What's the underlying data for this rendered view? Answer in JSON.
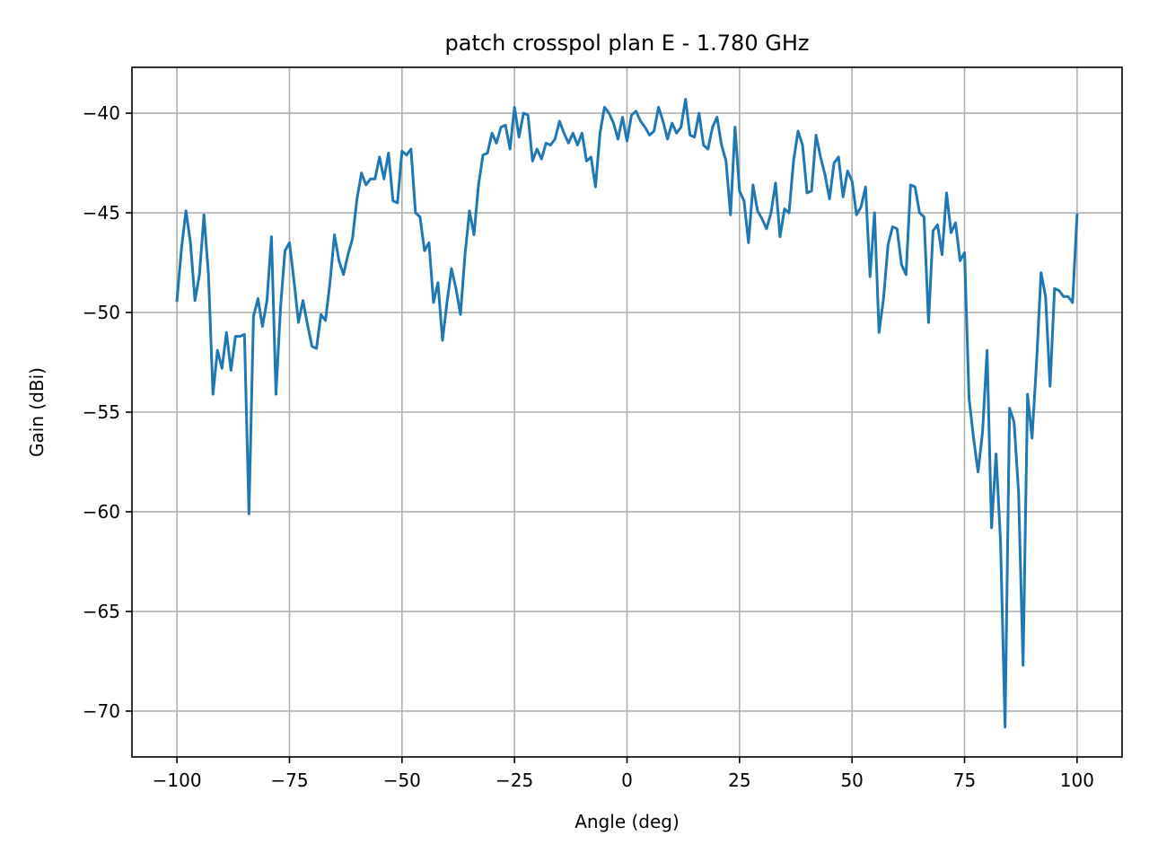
{
  "chart_data": {
    "type": "line",
    "title": "patch crosspol plan E - 1.780 GHz",
    "xlabel": "Angle (deg)",
    "ylabel": "Gain (dBi)",
    "xlim": [
      -110,
      110
    ],
    "ylim": [
      -72.3,
      -37.7
    ],
    "xticks": [
      -100,
      -75,
      -50,
      -25,
      0,
      25,
      50,
      75,
      100
    ],
    "xtick_labels": [
      "−100",
      "−75",
      "−50",
      "−25",
      "0",
      "25",
      "50",
      "75",
      "100"
    ],
    "yticks": [
      -40,
      -45,
      -50,
      -55,
      -60,
      -65,
      -70
    ],
    "ytick_labels": [
      "−40",
      "−45",
      "−50",
      "−55",
      "−60",
      "−65",
      "−70"
    ],
    "grid": true,
    "series": [
      {
        "color": "#1f77b4",
        "x": [
          -100,
          -99,
          -98,
          -97,
          -96,
          -95,
          -94,
          -93,
          -92,
          -91,
          -90,
          -89,
          -88,
          -87,
          -86,
          -85,
          -84,
          -83,
          -82,
          -81,
          -80,
          -79,
          -78,
          -77,
          -76,
          -75,
          -74,
          -73,
          -72,
          -71,
          -70,
          -69,
          -68,
          -67,
          -66,
          -65,
          -64,
          -63,
          -62,
          -61,
          -60,
          -59,
          -58,
          -57,
          -56,
          -55,
          -54,
          -53,
          -52,
          -51,
          -50,
          -49,
          -48,
          -47,
          -46,
          -45,
          -44,
          -43,
          -42,
          -41,
          -40,
          -39,
          -38,
          -37,
          -36,
          -35,
          -34,
          -33,
          -32,
          -31,
          -30,
          -29,
          -28,
          -27,
          -26,
          -25,
          -24,
          -23,
          -22,
          -21,
          -20,
          -19,
          -18,
          -17,
          -16,
          -15,
          -14,
          -13,
          -12,
          -11,
          -10,
          -9,
          -8,
          -7,
          -6,
          -5,
          -4,
          -3,
          -2,
          -1,
          0,
          1,
          2,
          3,
          4,
          5,
          6,
          7,
          8,
          9,
          10,
          11,
          12,
          13,
          14,
          15,
          16,
          17,
          18,
          19,
          20,
          21,
          22,
          23,
          24,
          25,
          26,
          27,
          28,
          29,
          30,
          31,
          32,
          33,
          34,
          35,
          36,
          37,
          38,
          39,
          40,
          41,
          42,
          43,
          44,
          45,
          46,
          47,
          48,
          49,
          50,
          51,
          52,
          53,
          54,
          55,
          56,
          57,
          58,
          59,
          60,
          61,
          62,
          63,
          64,
          65,
          66,
          67,
          68,
          69,
          70,
          71,
          72,
          73,
          74,
          75,
          76,
          77,
          78,
          79,
          80,
          81,
          82,
          83,
          84,
          85,
          86,
          87,
          88,
          89,
          90,
          91,
          92,
          93,
          94,
          95,
          96,
          97,
          98,
          99,
          100
        ],
        "y": [
          -49.4,
          -46.8,
          -44.9,
          -46.5,
          -49.4,
          -48.1,
          -45.1,
          -48.1,
          -54.1,
          -51.9,
          -52.8,
          -51.0,
          -52.9,
          -51.2,
          -51.2,
          -51.1,
          -60.1,
          -50.2,
          -49.3,
          -50.7,
          -49.4,
          -46.2,
          -54.1,
          -49.8,
          -46.9,
          -46.5,
          -48.4,
          -50.5,
          -49.4,
          -50.6,
          -51.7,
          -51.8,
          -50.1,
          -50.4,
          -48.5,
          -46.1,
          -47.4,
          -48.1,
          -47.1,
          -46.3,
          -44.3,
          -43.0,
          -43.6,
          -43.3,
          -43.3,
          -42.2,
          -43.3,
          -42.0,
          -44.4,
          -44.5,
          -41.9,
          -42.1,
          -41.8,
          -45.0,
          -45.2,
          -46.9,
          -46.5,
          -49.5,
          -48.5,
          -51.4,
          -49.5,
          -47.8,
          -48.8,
          -50.1,
          -47.1,
          -44.9,
          -46.1,
          -43.6,
          -42.1,
          -42.0,
          -41.0,
          -41.5,
          -40.7,
          -40.6,
          -41.8,
          -39.7,
          -41.2,
          -40.0,
          -40.1,
          -42.4,
          -41.8,
          -42.3,
          -41.5,
          -41.6,
          -41.3,
          -40.4,
          -41.0,
          -41.5,
          -41.0,
          -41.6,
          -41.0,
          -42.4,
          -42.2,
          -43.7,
          -41.0,
          -39.7,
          -40.0,
          -40.5,
          -41.3,
          -40.2,
          -41.4,
          -40.1,
          -39.9,
          -40.4,
          -40.7,
          -41.1,
          -40.9,
          -39.7,
          -40.4,
          -41.3,
          -40.5,
          -41.0,
          -40.7,
          -39.3,
          -41.1,
          -41.2,
          -40.0,
          -41.6,
          -41.8,
          -40.7,
          -40.2,
          -41.6,
          -42.4,
          -45.1,
          -40.7,
          -43.9,
          -44.4,
          -46.5,
          -43.6,
          -44.9,
          -45.3,
          -45.8,
          -45.0,
          -43.5,
          -46.2,
          -44.8,
          -45.0,
          -42.4,
          -40.9,
          -41.6,
          -44.0,
          -43.9,
          -41.1,
          -42.2,
          -43.1,
          -44.3,
          -42.5,
          -42.2,
          -44.2,
          -42.9,
          -43.4,
          -45.1,
          -44.7,
          -43.7,
          -48.2,
          -45.0,
          -51.0,
          -49.3,
          -46.6,
          -45.7,
          -45.8,
          -47.6,
          -48.1,
          -43.6,
          -43.7,
          -45.0,
          -45.2,
          -50.5,
          -45.9,
          -45.6,
          -47.1,
          -44.0,
          -46.0,
          -45.5,
          -47.4,
          -47.0,
          -54.3,
          -56.3,
          -58.0,
          -56.0,
          -51.9,
          -60.8,
          -57.1,
          -61.5,
          -70.8,
          -54.8,
          -55.5,
          -59.0,
          -67.7,
          -54.1,
          -56.3,
          -52.5,
          -48.0,
          -49.2,
          -53.7,
          -48.8,
          -48.9,
          -49.2,
          -49.2,
          -49.5,
          -45.1
        ]
      }
    ]
  }
}
